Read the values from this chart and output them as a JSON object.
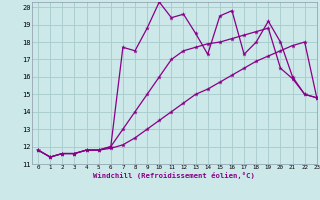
{
  "xlabel": "Windchill (Refroidissement éolien,°C)",
  "xlim": [
    -0.5,
    23
  ],
  "ylim": [
    11,
    20.3
  ],
  "yticks": [
    11,
    12,
    13,
    14,
    15,
    16,
    17,
    18,
    19,
    20
  ],
  "xticks": [
    0,
    1,
    2,
    3,
    4,
    5,
    6,
    7,
    8,
    9,
    10,
    11,
    12,
    13,
    14,
    15,
    16,
    17,
    18,
    19,
    20,
    21,
    22,
    23
  ],
  "background_color": "#cce8e8",
  "grid_color": "#aacece",
  "line_color": "#880088",
  "series": [
    [
      11.8,
      11.4,
      11.6,
      11.6,
      11.8,
      11.8,
      11.9,
      12.1,
      12.5,
      13.0,
      13.5,
      14.0,
      14.5,
      15.0,
      15.3,
      15.7,
      16.1,
      16.5,
      16.9,
      17.2,
      17.5,
      17.8,
      18.0,
      14.8
    ],
    [
      11.8,
      11.4,
      11.6,
      11.6,
      11.8,
      11.8,
      12.0,
      13.0,
      14.0,
      15.0,
      16.0,
      17.0,
      17.5,
      17.7,
      17.9,
      18.0,
      18.2,
      18.4,
      18.6,
      18.8,
      16.5,
      15.9,
      15.0,
      14.8
    ],
    [
      11.8,
      11.4,
      11.6,
      11.6,
      11.8,
      11.8,
      12.0,
      17.7,
      17.5,
      18.8,
      20.3,
      19.4,
      19.6,
      18.5,
      17.3,
      19.5,
      19.8,
      17.3,
      18.0,
      19.2,
      18.0,
      16.0,
      15.0,
      14.8
    ]
  ]
}
